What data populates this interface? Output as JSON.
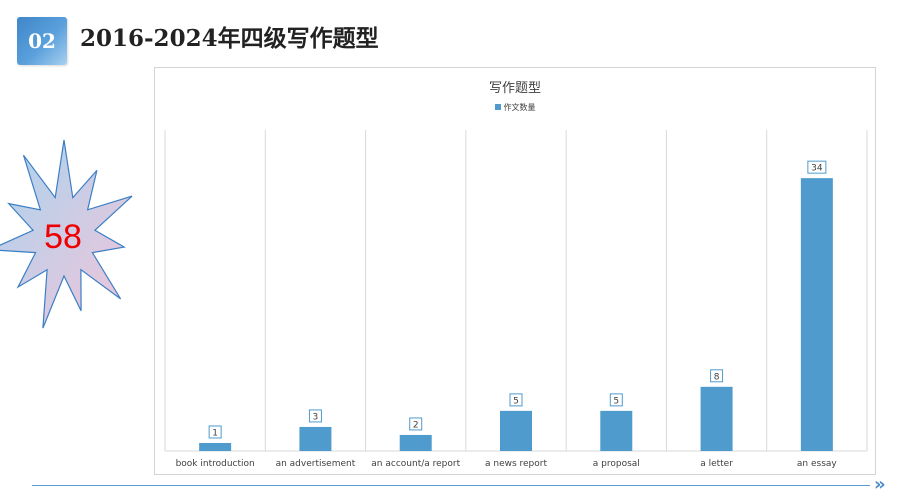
{
  "header": {
    "section_number": "02",
    "title": "2016-2024年四级写作题型"
  },
  "callout": {
    "total": "58",
    "fill_gradient_from": "#a8d4f0",
    "fill_gradient_to": "#f2c4d8",
    "stroke": "#3d7fc4",
    "text_color": "#ee0000"
  },
  "colors": {
    "bar": "#4f9bce",
    "accent": "#4a8ccc"
  },
  "chart_data": {
    "type": "bar",
    "title": "写作题型",
    "legend_position": "top",
    "grid": true,
    "categories": [
      "book introduction",
      "an advertisement",
      "an account/a report",
      "a news report",
      "a proposal",
      "a letter",
      "an essay"
    ],
    "series": [
      {
        "name": "作文数量",
        "values": [
          1,
          3,
          2,
          5,
          5,
          8,
          34
        ]
      }
    ],
    "ylim": [
      0,
      40
    ]
  },
  "footer": {
    "next_icon": "double-chevron-right-icon"
  }
}
